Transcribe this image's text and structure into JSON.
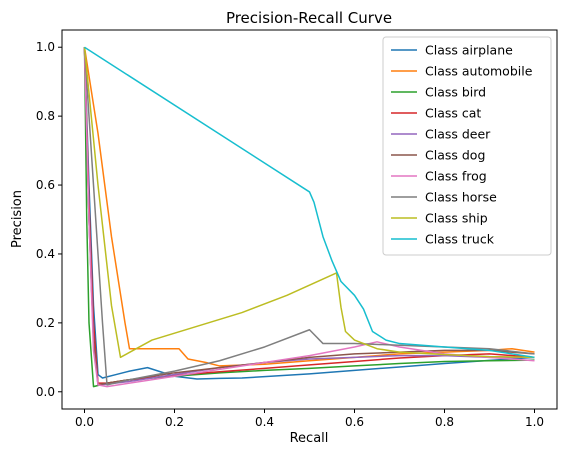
{
  "chart_data": {
    "type": "line",
    "title": "Precision-Recall Curve",
    "xlabel": "Recall",
    "ylabel": "Precision",
    "xlim": [
      -0.05,
      1.05
    ],
    "ylim": [
      -0.05,
      1.05
    ],
    "xticks": [
      "0.0",
      "0.2",
      "0.4",
      "0.6",
      "0.8",
      "1.0"
    ],
    "yticks": [
      "0.0",
      "0.2",
      "0.4",
      "0.6",
      "0.8",
      "1.0"
    ],
    "grid": false,
    "legend_position": "top-right",
    "series": [
      {
        "name": "Class airplane",
        "color": "#1f77b4",
        "x": [
          0.0,
          0.01,
          0.02,
          0.03,
          0.04,
          0.07,
          0.1,
          0.14,
          0.2,
          0.25,
          0.3,
          0.35,
          0.4,
          0.5,
          0.6,
          0.7,
          0.8,
          0.9,
          1.0
        ],
        "y": [
          1.0,
          0.6,
          0.25,
          0.05,
          0.04,
          0.05,
          0.06,
          0.07,
          0.045,
          0.037,
          0.039,
          0.04,
          0.044,
          0.052,
          0.062,
          0.072,
          0.082,
          0.091,
          0.1
        ]
      },
      {
        "name": "Class automobile",
        "color": "#ff7f0e",
        "x": [
          0.0,
          0.03,
          0.06,
          0.09,
          0.1,
          0.15,
          0.21,
          0.23,
          0.27,
          0.3,
          0.4,
          0.5,
          0.6,
          0.7,
          0.8,
          0.9,
          0.95,
          1.0
        ],
        "y": [
          1.0,
          0.75,
          0.45,
          0.2,
          0.125,
          0.125,
          0.125,
          0.095,
          0.085,
          0.075,
          0.08,
          0.09,
          0.1,
          0.11,
          0.115,
          0.12,
          0.125,
          0.115
        ]
      },
      {
        "name": "Class bird",
        "color": "#2ca02c",
        "x": [
          0.0,
          0.005,
          0.01,
          0.02,
          0.05,
          0.1,
          0.2,
          0.3,
          0.4,
          0.5,
          0.6,
          0.7,
          0.8,
          0.9,
          1.0
        ],
        "y": [
          1.0,
          0.5,
          0.2,
          0.015,
          0.025,
          0.035,
          0.045,
          0.055,
          0.062,
          0.068,
          0.075,
          0.082,
          0.088,
          0.09,
          0.092
        ]
      },
      {
        "name": "Class cat",
        "color": "#d62728",
        "x": [
          0.0,
          0.01,
          0.02,
          0.03,
          0.05,
          0.1,
          0.2,
          0.3,
          0.4,
          0.5,
          0.6,
          0.7,
          0.8,
          0.9,
          1.0
        ],
        "y": [
          1.0,
          0.55,
          0.2,
          0.025,
          0.025,
          0.035,
          0.048,
          0.058,
          0.068,
          0.078,
          0.088,
          0.098,
          0.105,
          0.11,
          0.1
        ]
      },
      {
        "name": "Class deer",
        "color": "#9467bd",
        "x": [
          0.0,
          0.01,
          0.02,
          0.03,
          0.05,
          0.1,
          0.2,
          0.3,
          0.4,
          0.5,
          0.6,
          0.7,
          0.8,
          0.9,
          1.0
        ],
        "y": [
          1.0,
          0.5,
          0.15,
          0.02,
          0.022,
          0.03,
          0.05,
          0.07,
          0.085,
          0.095,
          0.1,
          0.105,
          0.105,
          0.1,
          0.1
        ]
      },
      {
        "name": "Class dog",
        "color": "#8c564b",
        "x": [
          0.0,
          0.01,
          0.02,
          0.03,
          0.05,
          0.1,
          0.2,
          0.3,
          0.4,
          0.5,
          0.6,
          0.7,
          0.8,
          0.9,
          1.0
        ],
        "y": [
          1.0,
          0.5,
          0.15,
          0.02,
          0.025,
          0.035,
          0.055,
          0.07,
          0.085,
          0.1,
          0.11,
          0.115,
          0.12,
          0.12,
          0.11
        ]
      },
      {
        "name": "Class frog",
        "color": "#e377c2",
        "x": [
          0.0,
          0.01,
          0.02,
          0.03,
          0.05,
          0.1,
          0.2,
          0.3,
          0.4,
          0.5,
          0.6,
          0.65,
          0.7,
          0.8,
          0.9,
          1.0
        ],
        "y": [
          1.0,
          0.5,
          0.12,
          0.02,
          0.015,
          0.025,
          0.045,
          0.065,
          0.085,
          0.105,
          0.13,
          0.145,
          0.13,
          0.11,
          0.1,
          0.09
        ]
      },
      {
        "name": "Class horse",
        "color": "#7f7f7f",
        "x": [
          0.0,
          0.02,
          0.04,
          0.05,
          0.1,
          0.2,
          0.3,
          0.4,
          0.5,
          0.53,
          0.6,
          0.7,
          0.8,
          0.9,
          1.0
        ],
        "y": [
          1.0,
          0.6,
          0.2,
          0.02,
          0.035,
          0.06,
          0.09,
          0.13,
          0.18,
          0.14,
          0.14,
          0.135,
          0.13,
          0.125,
          0.11
        ]
      },
      {
        "name": "Class ship",
        "color": "#bcbd22",
        "x": [
          0.0,
          0.03,
          0.06,
          0.08,
          0.15,
          0.25,
          0.35,
          0.45,
          0.56,
          0.57,
          0.58,
          0.6,
          0.65,
          0.7,
          0.8,
          0.9,
          1.0
        ],
        "y": [
          1.0,
          0.6,
          0.25,
          0.1,
          0.15,
          0.19,
          0.23,
          0.28,
          0.345,
          0.245,
          0.175,
          0.15,
          0.125,
          0.115,
          0.108,
          0.102,
          0.1
        ]
      },
      {
        "name": "Class truck",
        "color": "#17becf",
        "x": [
          0.0,
          0.5,
          0.51,
          0.53,
          0.55,
          0.57,
          0.6,
          0.62,
          0.64,
          0.67,
          0.7,
          0.75,
          0.8,
          0.9,
          1.0
        ],
        "y": [
          1.0,
          0.58,
          0.55,
          0.45,
          0.38,
          0.32,
          0.28,
          0.24,
          0.175,
          0.15,
          0.14,
          0.135,
          0.13,
          0.12,
          0.1
        ]
      }
    ]
  }
}
